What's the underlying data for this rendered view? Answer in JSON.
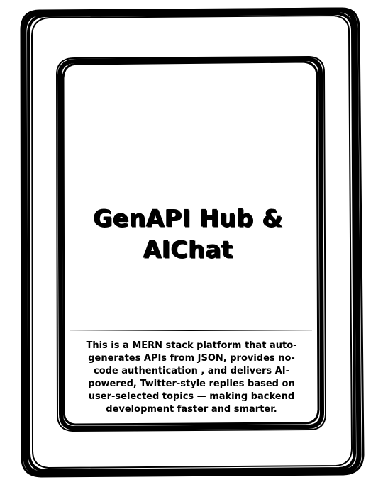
{
  "card": {
    "title_line1": "GenAPI Hub &",
    "title_line2": "AIChat",
    "description": "This is a MERN stack platform that auto-generates APIs from JSON, provides no-code authentication , and delivers AI-powered, Twitter-style replies based on user-selected topics — making backend development faster and smarter."
  },
  "colors": {
    "ink": "#000000",
    "paper": "#ffffff"
  }
}
